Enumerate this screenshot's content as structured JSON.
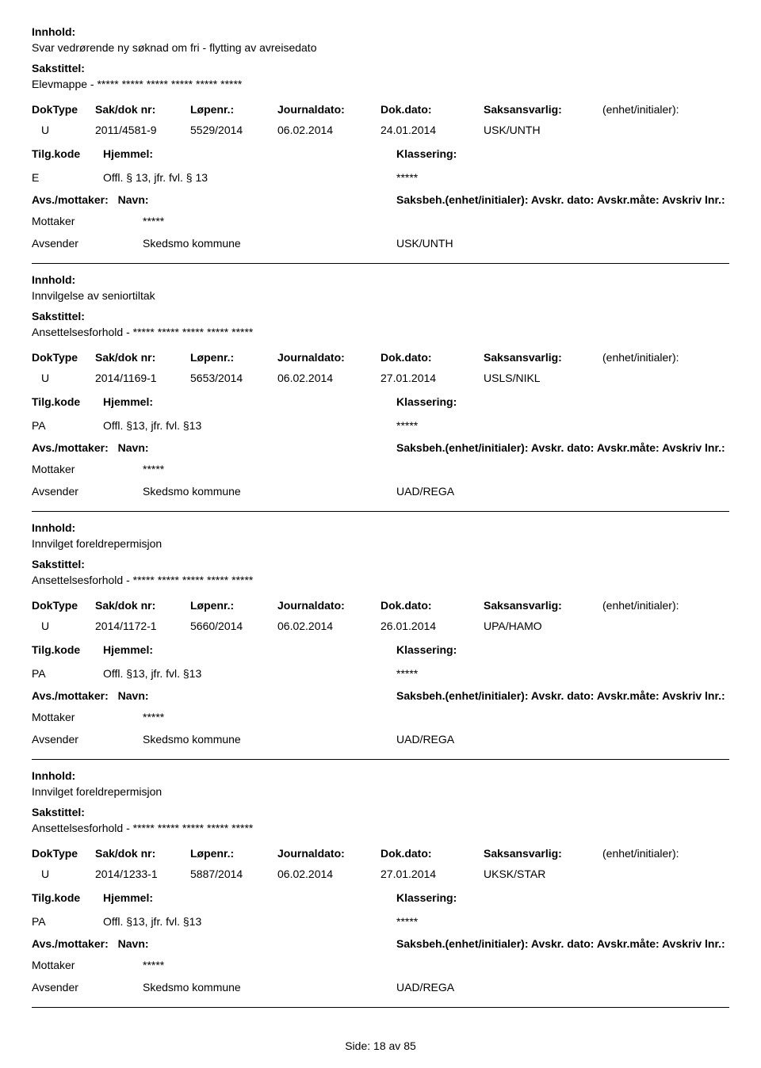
{
  "labels": {
    "innhold": "Innhold:",
    "sakstittel": "Sakstittel:",
    "doktype": "DokType",
    "sakdok": "Sak/dok nr:",
    "lopenr": "Løpenr.:",
    "journaldato": "Journaldato:",
    "dokdato": "Dok.dato:",
    "saksansvarlig": "Saksansvarlig:",
    "enhet_initialer": "(enhet/initialer):",
    "tilgkode": "Tilg.kode",
    "hjemmel": "Hjemmel:",
    "klassering": "Klassering:",
    "avs_mottaker": "Avs./mottaker:",
    "navn": "Navn:",
    "saksbeh_full": "Saksbeh.(enhet/initialer): Avskr. dato:  Avskr.måte: Avskriv lnr.:",
    "mottaker": "Mottaker",
    "avsender": "Avsender",
    "side": "Side:",
    "av": "av"
  },
  "footer": {
    "page": "18",
    "total": "85"
  },
  "records": [
    {
      "innhold": "Svar vedrørende ny søknad om fri - flytting av avreisedato",
      "sakstittel": "Elevmappe - ***** ***** ***** ***** ***** *****",
      "doktype": "U",
      "sakdok": "2011/4581-9",
      "lopenr": "5529/2014",
      "journaldato": "06.02.2014",
      "dokdato": "24.01.2014",
      "saksansvarlig": "USK/UNTH",
      "tilgkode": "E",
      "hjemmel": "Offl. § 13, jfr. fvl. § 13",
      "klassering": "*****",
      "mottaker_navn": "*****",
      "avsender_navn": "Skedsmo kommune",
      "avsender_enhet": "USK/UNTH"
    },
    {
      "innhold": "Innvilgelse av seniortiltak",
      "sakstittel": "Ansettelsesforhold - ***** ***** ***** ***** *****",
      "doktype": "U",
      "sakdok": "2014/1169-1",
      "lopenr": "5653/2014",
      "journaldato": "06.02.2014",
      "dokdato": "27.01.2014",
      "saksansvarlig": "USLS/NIKL",
      "tilgkode": "PA",
      "hjemmel": "Offl. §13, jfr. fvl. §13",
      "klassering": "*****",
      "mottaker_navn": "*****",
      "avsender_navn": "Skedsmo kommune",
      "avsender_enhet": "UAD/REGA"
    },
    {
      "innhold": "Innvilget foreldrepermisjon",
      "sakstittel": "Ansettelsesforhold - ***** ***** ***** ***** *****",
      "doktype": "U",
      "sakdok": "2014/1172-1",
      "lopenr": "5660/2014",
      "journaldato": "06.02.2014",
      "dokdato": "26.01.2014",
      "saksansvarlig": "UPA/HAMO",
      "tilgkode": "PA",
      "hjemmel": "Offl. §13, jfr. fvl. §13",
      "klassering": "*****",
      "mottaker_navn": "*****",
      "avsender_navn": "Skedsmo kommune",
      "avsender_enhet": "UAD/REGA"
    },
    {
      "innhold": "Innvilget foreldrepermisjon",
      "sakstittel": "Ansettelsesforhold - ***** ***** ***** ***** *****",
      "doktype": "U",
      "sakdok": "2014/1233-1",
      "lopenr": "5887/2014",
      "journaldato": "06.02.2014",
      "dokdato": "27.01.2014",
      "saksansvarlig": "UKSK/STAR",
      "tilgkode": "PA",
      "hjemmel": "Offl. §13, jfr. fvl. §13",
      "klassering": "*****",
      "mottaker_navn": "*****",
      "avsender_navn": "Skedsmo kommune",
      "avsender_enhet": "UAD/REGA"
    }
  ]
}
